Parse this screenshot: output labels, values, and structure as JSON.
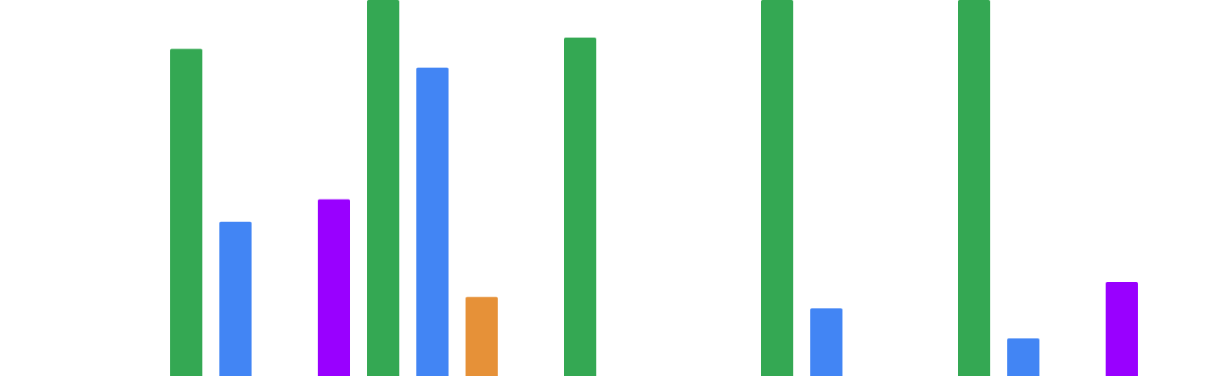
{
  "chart_data": {
    "type": "bar",
    "title": "",
    "xlabel": "",
    "ylabel": "",
    "ylim": [
      0,
      100
    ],
    "grid": false,
    "legend": "none",
    "categories": [
      "",
      "",
      "",
      "",
      ""
    ],
    "series": [
      {
        "color": "#34A853",
        "values": [
          87,
          100,
          90,
          100,
          100
        ]
      },
      {
        "color": "#4285F4",
        "values": [
          41,
          82,
          0,
          18,
          10
        ]
      },
      {
        "color": "#E69138",
        "values": [
          0,
          21,
          0,
          0,
          0
        ]
      },
      {
        "color": "#9900FF",
        "values": [
          47,
          0,
          0,
          0,
          25
        ]
      }
    ]
  }
}
